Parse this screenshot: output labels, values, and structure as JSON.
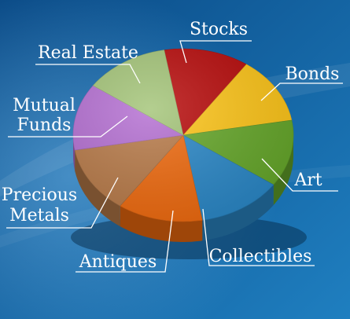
{
  "chart_data": {
    "type": "pie",
    "title": "",
    "categories": [
      "Stocks",
      "Bonds",
      "Art",
      "Collectibles",
      "Antiques",
      "Precious Metals",
      "Mutual Funds",
      "Real Estate"
    ],
    "values": [
      12.5,
      12.5,
      12.5,
      12.5,
      12.5,
      12.5,
      12.5,
      12.5
    ],
    "slices": [
      {
        "label": "Stocks",
        "value": 12.5,
        "color": "#b80a0a"
      },
      {
        "label": "Bonds",
        "value": 12.5,
        "color": "#ffc618"
      },
      {
        "label": "Art",
        "value": 12.5,
        "color": "#66a82a"
      },
      {
        "label": "Collectibles",
        "value": 12.5,
        "color": "#2a88c8"
      },
      {
        "label": "Antiques",
        "value": 12.5,
        "color": "#f06a0e"
      },
      {
        "label": "Precious Metals",
        "value": 12.5,
        "color": "#b87a48"
      },
      {
        "label": "Mutual Funds",
        "value": 12.5,
        "color": "#b46ed2"
      },
      {
        "label": "Real Estate",
        "value": 12.5,
        "color": "#a3c477"
      }
    ],
    "legend": "none",
    "style": "3d-tilted",
    "background_colors": [
      "#0a4a86",
      "#1f7fc0"
    ]
  },
  "labels": {
    "stocks": "Stocks",
    "bonds": "Bonds",
    "art": "Art",
    "collectibles": "Collectibles",
    "antiques": "Antiques",
    "precious_1": "Precious",
    "precious_2": "Metals",
    "mutual_1": "Mutual",
    "mutual_2": "Funds",
    "real_estate": "Real Estate"
  }
}
